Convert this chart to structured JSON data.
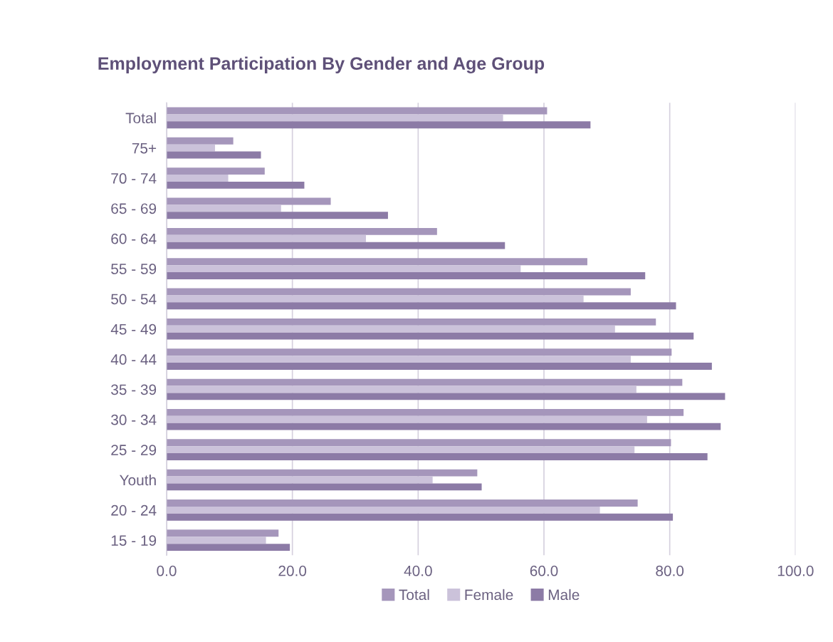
{
  "chart_data": {
    "type": "bar",
    "orientation": "horizontal",
    "title": "Employment Participation By Gender and Age Group",
    "categories": [
      "Total",
      "75+",
      "70 - 74",
      "65 - 69",
      "60 - 64",
      "55 - 59",
      "50 - 54",
      "45 - 49",
      "40 - 44",
      "35 - 39",
      "30 - 34",
      "25 - 29",
      "Youth",
      "20 - 24",
      "15 - 19"
    ],
    "series": [
      {
        "name": "Total",
        "color": "#a596bb",
        "values": [
          60.5,
          10.6,
          15.6,
          26.1,
          43.0,
          66.9,
          73.8,
          77.8,
          80.3,
          82.0,
          82.2,
          80.2,
          49.4,
          74.9,
          17.8
        ]
      },
      {
        "name": "Female",
        "color": "#cbc2da",
        "values": [
          53.5,
          7.7,
          9.8,
          18.2,
          31.7,
          56.3,
          66.3,
          71.3,
          73.8,
          74.7,
          76.4,
          74.4,
          42.3,
          68.9,
          15.8
        ]
      },
      {
        "name": "Male",
        "color": "#8c7ba6",
        "values": [
          67.4,
          15.0,
          21.9,
          35.2,
          53.8,
          76.1,
          81.0,
          83.8,
          86.7,
          88.8,
          88.1,
          86.0,
          50.1,
          80.5,
          19.6
        ]
      }
    ],
    "xlim": [
      0,
      100
    ],
    "xticks": [
      {
        "value": 0,
        "label": "0.0"
      },
      {
        "value": 20,
        "label": "20.0"
      },
      {
        "value": 40,
        "label": "40.0"
      },
      {
        "value": 60,
        "label": "60.0"
      },
      {
        "value": 80,
        "label": "80.0"
      },
      {
        "value": 100,
        "label": "100.0"
      }
    ],
    "grid": "x",
    "legend": "bottom"
  }
}
